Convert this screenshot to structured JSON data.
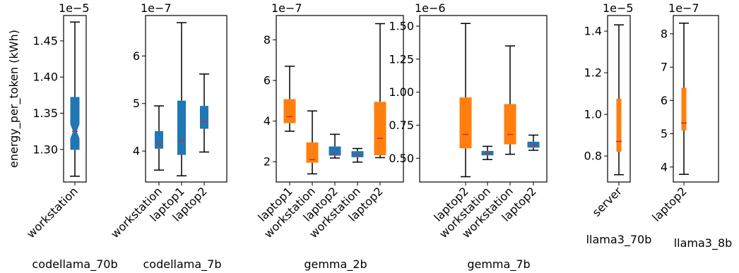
{
  "figure": {
    "ylabel": "energy_per_token (kWh)"
  },
  "chart_data": [
    {
      "type": "box",
      "xlabel": "codellama_70b",
      "ylabel": "energy_per_token (kWh)",
      "exponent_label": "1e−5",
      "ylim": [
        1.255,
        1.485
      ],
      "yticks": [
        1.3,
        1.35,
        1.4,
        1.45
      ],
      "ytick_labels": [
        "1.30",
        "1.35",
        "1.40",
        "1.45"
      ],
      "categories": [
        "workstation"
      ],
      "boxes": [
        {
          "category": "workstation",
          "color": "#1f77b4",
          "whislo": 1.263,
          "q1": 1.3,
          "med": 1.325,
          "q3": 1.372,
          "whishi": 1.476
        }
      ]
    },
    {
      "type": "box",
      "xlabel": "codellama_7b",
      "exponent_label": "1e−7",
      "ylim": [
        3.35,
        6.85
      ],
      "yticks": [
        4,
        5,
        6
      ],
      "ytick_labels": [
        "4",
        "5",
        "6"
      ],
      "categories": [
        "workstation",
        "laptop1",
        "laptop2"
      ],
      "boxes": [
        {
          "category": "workstation",
          "color": "#1f77b4",
          "whislo": 3.6,
          "q1": 4.05,
          "med": 4.15,
          "q3": 4.42,
          "whishi": 4.95
        },
        {
          "category": "laptop1",
          "color": "#1f77b4",
          "whislo": 3.48,
          "q1": 3.92,
          "med": 4.22,
          "q3": 5.06,
          "whishi": 6.7
        },
        {
          "category": "laptop2",
          "color": "#1f77b4",
          "whislo": 3.98,
          "q1": 4.47,
          "med": 4.62,
          "q3": 4.95,
          "whishi": 5.62
        }
      ]
    },
    {
      "type": "box",
      "xlabel": "gemma_2b",
      "exponent_label": "1e−7",
      "ylim": [
        1.0,
        9.2
      ],
      "yticks": [
        2,
        4,
        6,
        8
      ],
      "ytick_labels": [
        "2",
        "4",
        "6",
        "8"
      ],
      "categories": [
        "laptop1",
        "workstation",
        "laptop2",
        "workstation",
        "laptop2"
      ],
      "boxes": [
        {
          "category": "laptop1",
          "color": "#ff7f0e",
          "whislo": 3.5,
          "q1": 3.9,
          "med": 4.22,
          "q3": 5.08,
          "whishi": 6.7
        },
        {
          "category": "workstation",
          "color": "#ff7f0e",
          "whislo": 1.4,
          "q1": 1.95,
          "med": 2.1,
          "q3": 2.95,
          "whishi": 4.5
        },
        {
          "category": "laptop2",
          "color": "#1f77b4",
          "whislo": 2.18,
          "q1": 2.3,
          "med": 2.38,
          "q3": 2.75,
          "whishi": 3.35
        },
        {
          "category": "workstation",
          "color": "#1f77b4",
          "whislo": 1.98,
          "q1": 2.22,
          "med": 2.32,
          "q3": 2.52,
          "whishi": 2.65
        },
        {
          "category": "laptop2",
          "color": "#ff7f0e",
          "whislo": 2.2,
          "q1": 2.32,
          "med": 3.15,
          "q3": 4.95,
          "whishi": 8.8
        }
      ]
    },
    {
      "type": "box",
      "xlabel": "gemma_7b",
      "exponent_label": "1e−6",
      "ylim": [
        0.32,
        1.58
      ],
      "yticks": [
        0.5,
        0.75,
        1.0,
        1.25,
        1.5
      ],
      "ytick_labels": [
        "0.50",
        "0.75",
        "1.00",
        "1.25",
        "1.50"
      ],
      "categories": [
        "laptop2",
        "workstation",
        "workstation",
        "laptop2"
      ],
      "boxes": [
        {
          "category": "laptop2",
          "color": "#ff7f0e",
          "whislo": 0.36,
          "q1": 0.575,
          "med": 0.68,
          "q3": 0.96,
          "whishi": 1.52
        },
        {
          "category": "workstation",
          "color": "#1f77b4",
          "whislo": 0.49,
          "q1": 0.522,
          "med": 0.54,
          "q3": 0.555,
          "whishi": 0.59
        },
        {
          "category": "workstation",
          "color": "#ff7f0e",
          "whislo": 0.53,
          "q1": 0.605,
          "med": 0.68,
          "q3": 0.91,
          "whishi": 1.35
        },
        {
          "category": "laptop2",
          "color": "#1f77b4",
          "whislo": 0.56,
          "q1": 0.58,
          "med": 0.6,
          "q3": 0.625,
          "whishi": 0.675
        }
      ]
    },
    {
      "type": "box",
      "xlabel": "llama3_70b",
      "exponent_label": "1e−5",
      "ylim": [
        0.675,
        1.475
      ],
      "yticks": [
        0.8,
        1.0,
        1.2,
        1.4
      ],
      "ytick_labels": [
        "0.8",
        "1.0",
        "1.2",
        "1.4"
      ],
      "categories": [
        "server"
      ],
      "boxes": [
        {
          "category": "server",
          "color": "#ff7f0e",
          "whislo": 0.71,
          "q1": 0.82,
          "med": 0.87,
          "q3": 1.075,
          "whishi": 1.43
        }
      ]
    },
    {
      "type": "box",
      "xlabel": "llama3_8b",
      "exponent_label": "1e−7",
      "ylim": [
        3.55,
        8.55
      ],
      "yticks": [
        4,
        5,
        6,
        7,
        8
      ],
      "ytick_labels": [
        "4",
        "5",
        "6",
        "7",
        "8"
      ],
      "categories": [
        "laptop2"
      ],
      "boxes": [
        {
          "category": "laptop2",
          "color": "#ff7f0e",
          "whislo": 3.78,
          "q1": 5.1,
          "med": 5.32,
          "q3": 6.38,
          "whishi": 8.32
        }
      ]
    }
  ]
}
